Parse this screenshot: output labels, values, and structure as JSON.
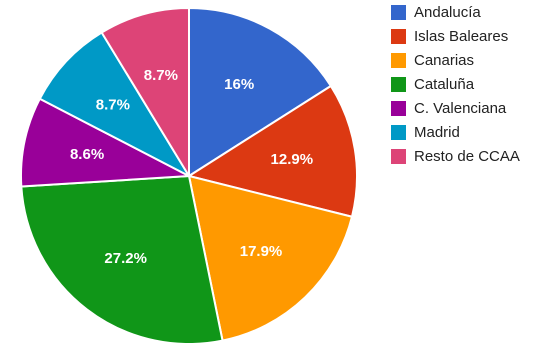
{
  "chart_data": {
    "type": "pie",
    "start_angle_deg": 0,
    "direction": "clockwise",
    "legend_position": "right",
    "slices": [
      {
        "label": "Andalucía",
        "value": 16.0,
        "display": "16%",
        "color": "#3366cc"
      },
      {
        "label": "Islas Baleares",
        "value": 12.9,
        "display": "12.9%",
        "color": "#dc3912"
      },
      {
        "label": "Canarias",
        "value": 17.9,
        "display": "17.9%",
        "color": "#ff9900"
      },
      {
        "label": "Cataluña",
        "value": 27.2,
        "display": "27.2%",
        "color": "#109618"
      },
      {
        "label": "C. Valenciana",
        "value": 8.6,
        "display": "8.6%",
        "color": "#990099"
      },
      {
        "label": "Madrid",
        "value": 8.7,
        "display": "8.7%",
        "color": "#0099c6"
      },
      {
        "label": "Resto de CCAA",
        "value": 8.7,
        "display": "8.7%",
        "color": "#dd4477"
      }
    ]
  }
}
